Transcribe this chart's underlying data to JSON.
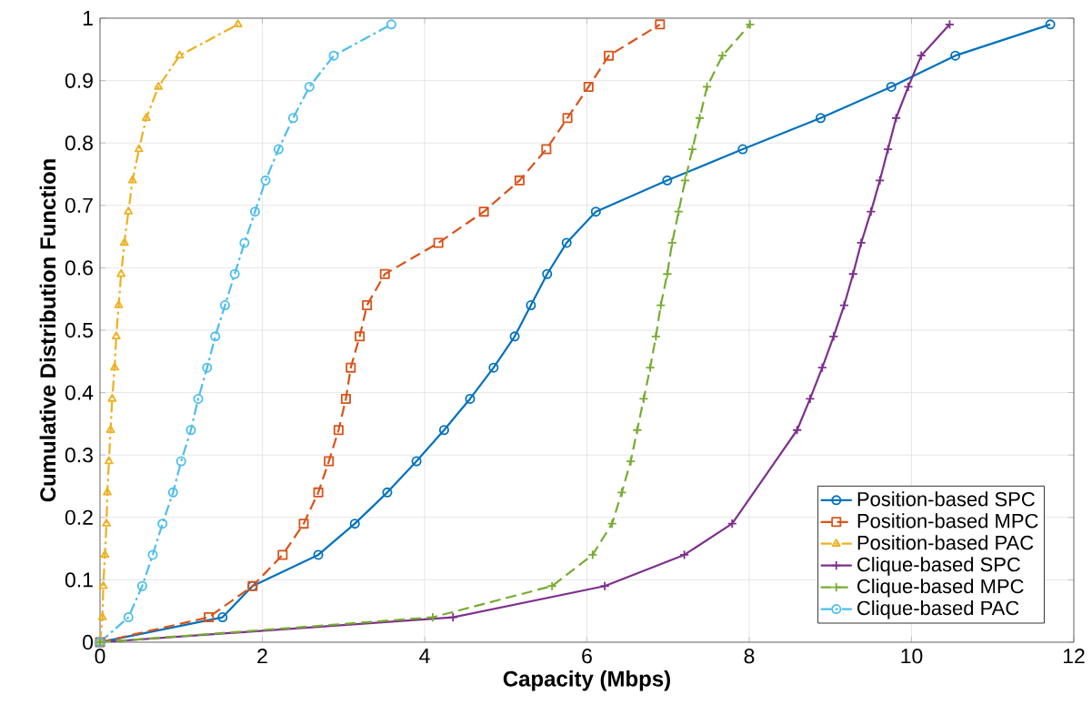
{
  "chart_data": {
    "type": "line",
    "xlabel": "Capacity (Mbps)",
    "ylabel": "Cumulative Distribution Function",
    "xlim": [
      0,
      12
    ],
    "ylim": [
      0,
      1
    ],
    "xticks": [
      0,
      2,
      4,
      6,
      8,
      10,
      12
    ],
    "yticks": [
      0,
      0.1,
      0.2,
      0.3,
      0.4,
      0.5,
      0.6,
      0.7,
      0.8,
      0.9,
      1
    ],
    "grid": true,
    "legend": "bottom right",
    "series": [
      {
        "name": "Position-based SPC",
        "color": "#0072bd",
        "marker": "circle",
        "line_style": "solid",
        "x": [
          0,
          1.51,
          1.88,
          2.69,
          3.14,
          3.54,
          3.9,
          4.24,
          4.56,
          4.85,
          5.11,
          5.31,
          5.51,
          5.75,
          6.11,
          6.99,
          7.92,
          8.88,
          9.75,
          10.54,
          11.71
        ],
        "values": [
          0,
          0.04,
          0.09,
          0.14,
          0.19,
          0.24,
          0.29,
          0.34,
          0.39,
          0.44,
          0.49,
          0.54,
          0.59,
          0.64,
          0.69,
          0.74,
          0.79,
          0.84,
          0.89,
          0.94,
          0.99
        ]
      },
      {
        "name": "Position-based MPC",
        "color": "#d95319",
        "marker": "square",
        "line_style": "dashed",
        "x": [
          0,
          1.34,
          1.88,
          2.25,
          2.51,
          2.69,
          2.82,
          2.94,
          3.03,
          3.09,
          3.2,
          3.29,
          3.51,
          4.17,
          4.73,
          5.17,
          5.5,
          5.76,
          6.02,
          6.27,
          6.9
        ],
        "values": [
          0,
          0.04,
          0.09,
          0.14,
          0.19,
          0.24,
          0.29,
          0.34,
          0.39,
          0.44,
          0.49,
          0.54,
          0.59,
          0.64,
          0.69,
          0.74,
          0.79,
          0.84,
          0.89,
          0.94,
          0.99
        ]
      },
      {
        "name": "Position-based PAC",
        "color": "#edb120",
        "marker": "triangle",
        "line_style": "dashdot",
        "x": [
          0,
          0.03,
          0.04,
          0.06,
          0.08,
          0.09,
          0.11,
          0.13,
          0.15,
          0.18,
          0.2,
          0.23,
          0.26,
          0.3,
          0.35,
          0.4,
          0.48,
          0.57,
          0.72,
          0.98,
          1.7
        ],
        "values": [
          0,
          0.04,
          0.09,
          0.14,
          0.19,
          0.24,
          0.29,
          0.34,
          0.39,
          0.44,
          0.49,
          0.54,
          0.59,
          0.64,
          0.69,
          0.74,
          0.79,
          0.84,
          0.89,
          0.94,
          0.99
        ]
      },
      {
        "name": "Clique-based SPC",
        "color": "#7e2f8e",
        "marker": "cross",
        "line_style": "solid",
        "x": [
          0,
          4.35,
          6.22,
          7.2,
          7.79,
          8.59,
          8.75,
          8.9,
          9.04,
          9.17,
          9.28,
          9.38,
          9.5,
          9.61,
          9.71,
          9.81,
          9.96,
          10.12,
          10.47
        ],
        "values": [
          0,
          0.04,
          0.09,
          0.14,
          0.19,
          0.34,
          0.39,
          0.44,
          0.49,
          0.54,
          0.59,
          0.64,
          0.69,
          0.74,
          0.79,
          0.84,
          0.89,
          0.94,
          0.99
        ]
      },
      {
        "name": "Clique-based MPC",
        "color": "#77ac30",
        "marker": "cross",
        "line_style": "dashed",
        "x": [
          0,
          4.1,
          5.57,
          6.07,
          6.31,
          6.43,
          6.54,
          6.62,
          6.7,
          6.78,
          6.85,
          6.91,
          6.99,
          7.05,
          7.13,
          7.21,
          7.3,
          7.39,
          7.48,
          7.67,
          8.01
        ],
        "values": [
          0,
          0.04,
          0.09,
          0.14,
          0.19,
          0.24,
          0.29,
          0.34,
          0.39,
          0.44,
          0.49,
          0.54,
          0.59,
          0.64,
          0.69,
          0.74,
          0.79,
          0.84,
          0.89,
          0.94,
          0.99
        ]
      },
      {
        "name": "Clique-based PAC",
        "color": "#4dbeee",
        "marker": "circle",
        "line_style": "dashdot",
        "x": [
          0,
          0.35,
          0.52,
          0.65,
          0.77,
          0.9,
          1.0,
          1.12,
          1.21,
          1.32,
          1.42,
          1.54,
          1.66,
          1.78,
          1.91,
          2.04,
          2.2,
          2.38,
          2.58,
          2.88,
          3.59
        ],
        "values": [
          0,
          0.04,
          0.09,
          0.14,
          0.19,
          0.24,
          0.29,
          0.34,
          0.39,
          0.44,
          0.49,
          0.54,
          0.59,
          0.64,
          0.69,
          0.74,
          0.79,
          0.84,
          0.89,
          0.94,
          0.99
        ]
      }
    ]
  }
}
